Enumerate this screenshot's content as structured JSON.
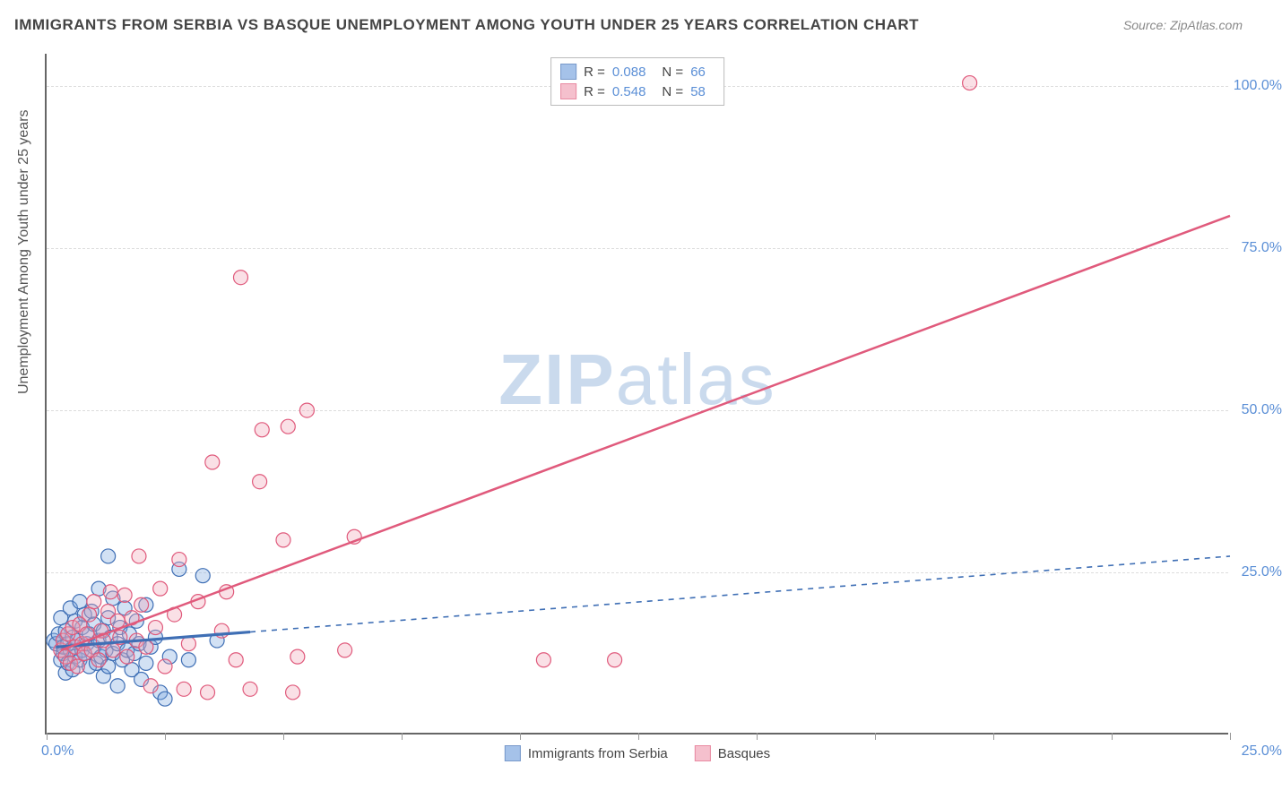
{
  "title": "IMMIGRANTS FROM SERBIA VS BASQUE UNEMPLOYMENT AMONG YOUTH UNDER 25 YEARS CORRELATION CHART",
  "source": "Source: ZipAtlas.com",
  "y_axis_label": "Unemployment Among Youth under 25 years",
  "watermark_zip": "ZIP",
  "watermark_atlas": "atlas",
  "chart": {
    "type": "scatter",
    "xlim": [
      0,
      25
    ],
    "ylim": [
      0,
      105
    ],
    "x_origin_label": "0.0%",
    "x_max_label": "25.0%",
    "x_tick_positions": [
      0,
      2.5,
      5.0,
      7.5,
      10.0,
      12.5,
      15.0,
      17.5,
      20.0,
      22.5,
      25.0
    ],
    "y_ticks": [
      {
        "value": 25,
        "label": "25.0%"
      },
      {
        "value": 50,
        "label": "50.0%"
      },
      {
        "value": 75,
        "label": "75.0%"
      },
      {
        "value": 100,
        "label": "100.0%"
      }
    ],
    "background_color": "#ffffff",
    "grid_color": "#dddddd",
    "axis_color": "#666666",
    "marker_radius": 8,
    "marker_fill_opacity": 0.35,
    "series": [
      {
        "id": "serbia",
        "label": "Immigrants from Serbia",
        "r_label": "R =",
        "r_value": "0.088",
        "n_label": "N =",
        "n_value": "66",
        "color_fill": "#7fa9e0",
        "color_stroke": "#3f6fb5",
        "trendline": {
          "style": "solid-then-dashed",
          "solid_end_x": 4.3,
          "x1": 0.2,
          "y1": 13.5,
          "x2": 25.0,
          "y2": 27.5,
          "width": 2.2,
          "dash": "6,6"
        },
        "points": [
          [
            0.15,
            14.5
          ],
          [
            0.2,
            14.0
          ],
          [
            0.25,
            15.5
          ],
          [
            0.3,
            11.5
          ],
          [
            0.3,
            18.0
          ],
          [
            0.35,
            12.5
          ],
          [
            0.35,
            13.5
          ],
          [
            0.4,
            9.5
          ],
          [
            0.4,
            16.0
          ],
          [
            0.45,
            14.0
          ],
          [
            0.45,
            11.0
          ],
          [
            0.5,
            19.5
          ],
          [
            0.5,
            13.0
          ],
          [
            0.55,
            15.0
          ],
          [
            0.55,
            10.0
          ],
          [
            0.6,
            12.0
          ],
          [
            0.6,
            17.5
          ],
          [
            0.65,
            14.5
          ],
          [
            0.7,
            20.5
          ],
          [
            0.7,
            11.5
          ],
          [
            0.75,
            13.0
          ],
          [
            0.75,
            16.5
          ],
          [
            0.8,
            12.5
          ],
          [
            0.8,
            18.5
          ],
          [
            0.85,
            14.0
          ],
          [
            0.9,
            10.5
          ],
          [
            0.9,
            15.5
          ],
          [
            0.95,
            19.0
          ],
          [
            1.0,
            13.5
          ],
          [
            1.0,
            17.0
          ],
          [
            1.05,
            11.0
          ],
          [
            1.1,
            22.5
          ],
          [
            1.1,
            14.5
          ],
          [
            1.15,
            12.0
          ],
          [
            1.2,
            16.0
          ],
          [
            1.2,
            9.0
          ],
          [
            1.25,
            13.0
          ],
          [
            1.3,
            18.0
          ],
          [
            1.3,
            10.5
          ],
          [
            1.35,
            15.0
          ],
          [
            1.4,
            21.0
          ],
          [
            1.4,
            12.5
          ],
          [
            1.5,
            14.0
          ],
          [
            1.5,
            7.5
          ],
          [
            1.55,
            16.5
          ],
          [
            1.6,
            11.5
          ],
          [
            1.65,
            19.5
          ],
          [
            1.7,
            13.0
          ],
          [
            1.75,
            15.5
          ],
          [
            1.8,
            10.0
          ],
          [
            1.85,
            12.5
          ],
          [
            1.9,
            17.5
          ],
          [
            1.95,
            14.0
          ],
          [
            2.0,
            8.5
          ],
          [
            2.1,
            20.0
          ],
          [
            2.1,
            11.0
          ],
          [
            2.2,
            13.5
          ],
          [
            2.3,
            15.0
          ],
          [
            2.4,
            6.5
          ],
          [
            2.5,
            5.5
          ],
          [
            2.6,
            12.0
          ],
          [
            2.8,
            25.5
          ],
          [
            3.0,
            11.5
          ],
          [
            3.3,
            24.5
          ],
          [
            3.6,
            14.5
          ],
          [
            1.3,
            27.5
          ]
        ]
      },
      {
        "id": "basques",
        "label": "Basques",
        "r_label": "R =",
        "r_value": "0.548",
        "n_label": "N =",
        "n_value": "58",
        "color_fill": "#f2a6b8",
        "color_stroke": "#e05a7c",
        "trendline": {
          "style": "solid",
          "x1": 0.3,
          "y1": 13.0,
          "x2": 25.0,
          "y2": 80.0,
          "width": 2.5
        },
        "points": [
          [
            0.3,
            13.0
          ],
          [
            0.35,
            14.5
          ],
          [
            0.4,
            12.0
          ],
          [
            0.45,
            15.5
          ],
          [
            0.5,
            11.0
          ],
          [
            0.55,
            16.5
          ],
          [
            0.6,
            13.5
          ],
          [
            0.65,
            10.5
          ],
          [
            0.7,
            17.0
          ],
          [
            0.75,
            14.0
          ],
          [
            0.8,
            12.5
          ],
          [
            0.85,
            15.5
          ],
          [
            0.9,
            18.5
          ],
          [
            0.95,
            13.0
          ],
          [
            1.0,
            20.5
          ],
          [
            1.1,
            11.5
          ],
          [
            1.15,
            16.0
          ],
          [
            1.2,
            14.5
          ],
          [
            1.3,
            19.0
          ],
          [
            1.35,
            22.0
          ],
          [
            1.4,
            13.0
          ],
          [
            1.5,
            17.5
          ],
          [
            1.55,
            15.0
          ],
          [
            1.65,
            21.5
          ],
          [
            1.7,
            12.0
          ],
          [
            1.8,
            18.0
          ],
          [
            1.9,
            14.5
          ],
          [
            1.95,
            27.5
          ],
          [
            2.0,
            20.0
          ],
          [
            2.1,
            13.5
          ],
          [
            2.3,
            16.5
          ],
          [
            2.4,
            22.5
          ],
          [
            2.5,
            10.5
          ],
          [
            2.7,
            18.5
          ],
          [
            2.8,
            27.0
          ],
          [
            3.0,
            14.0
          ],
          [
            3.2,
            20.5
          ],
          [
            3.4,
            6.5
          ],
          [
            3.5,
            42.0
          ],
          [
            3.7,
            16.0
          ],
          [
            3.8,
            22.0
          ],
          [
            4.0,
            11.5
          ],
          [
            4.1,
            70.5
          ],
          [
            4.3,
            7.0
          ],
          [
            4.5,
            39.0
          ],
          [
            4.55,
            47.0
          ],
          [
            5.0,
            30.0
          ],
          [
            5.1,
            47.5
          ],
          [
            5.2,
            6.5
          ],
          [
            5.3,
            12.0
          ],
          [
            5.5,
            50.0
          ],
          [
            6.3,
            13.0
          ],
          [
            6.5,
            30.5
          ],
          [
            10.5,
            11.5
          ],
          [
            12.0,
            11.5
          ],
          [
            19.5,
            100.5
          ],
          [
            2.2,
            7.5
          ],
          [
            2.9,
            7.0
          ]
        ]
      }
    ]
  }
}
